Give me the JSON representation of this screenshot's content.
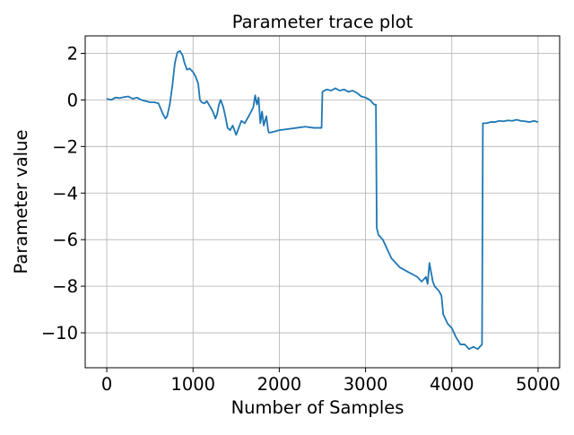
{
  "chart_data": {
    "type": "line",
    "title": "Parameter trace plot",
    "xlabel": "Number of Samples",
    "ylabel": "Parameter value",
    "xlim": [
      -250,
      5250
    ],
    "ylim": [
      -11.5,
      2.75
    ],
    "xticks": [
      0,
      1000,
      2000,
      3000,
      4000,
      5000
    ],
    "yticks": [
      2,
      0,
      -2,
      -4,
      -6,
      -8,
      -10
    ],
    "xtick_labels": [
      "0",
      "1000",
      "2000",
      "3000",
      "4000",
      "5000"
    ],
    "ytick_labels": [
      "2",
      "0",
      "−2",
      "−4",
      "−6",
      "−8",
      "−10"
    ],
    "grid": true,
    "legend": "none",
    "series": [
      {
        "color": "#1f77b4",
        "x": [
          0,
          50,
          100,
          150,
          200,
          250,
          300,
          350,
          400,
          450,
          500,
          550,
          600,
          650,
          680,
          700,
          730,
          760,
          790,
          820,
          850,
          880,
          900,
          930,
          960,
          1000,
          1030,
          1060,
          1080,
          1100,
          1130,
          1160,
          1200,
          1230,
          1260,
          1280,
          1300,
          1320,
          1350,
          1380,
          1400,
          1430,
          1460,
          1500,
          1530,
          1560,
          1600,
          1630,
          1660,
          1700,
          1720,
          1740,
          1760,
          1780,
          1800,
          1820,
          1850,
          1870,
          1880,
          1900,
          1950,
          2000,
          2100,
          2200,
          2300,
          2400,
          2490,
          2500,
          2550,
          2600,
          2650,
          2700,
          2750,
          2800,
          2850,
          2900,
          2950,
          3000,
          3050,
          3100,
          3120,
          3130,
          3150,
          3200,
          3250,
          3300,
          3350,
          3400,
          3450,
          3500,
          3550,
          3600,
          3650,
          3700,
          3720,
          3740,
          3760,
          3780,
          3800,
          3850,
          3880,
          3900,
          3950,
          4000,
          4050,
          4100,
          4150,
          4200,
          4250,
          4300,
          4350,
          4360,
          4400,
          4450,
          4500,
          4550,
          4600,
          4650,
          4700,
          4750,
          4800,
          4850,
          4900,
          4950,
          5000
        ],
        "y": [
          0.05,
          0.0,
          0.1,
          0.08,
          0.12,
          0.15,
          0.05,
          0.1,
          0.0,
          -0.05,
          -0.1,
          -0.1,
          -0.15,
          -0.6,
          -0.8,
          -0.7,
          -0.2,
          0.6,
          1.6,
          2.05,
          2.1,
          1.9,
          1.6,
          1.3,
          1.35,
          1.2,
          1.0,
          0.7,
          0.0,
          -0.1,
          -0.15,
          -0.05,
          -0.3,
          -0.5,
          -0.8,
          -0.6,
          -0.2,
          0.0,
          -0.3,
          -0.8,
          -1.2,
          -1.3,
          -1.1,
          -1.5,
          -1.2,
          -0.9,
          -1.0,
          -0.8,
          -0.6,
          -0.3,
          0.2,
          -0.2,
          0.1,
          -1.0,
          -0.5,
          -1.1,
          -0.7,
          -1.3,
          -1.4,
          -1.4,
          -1.35,
          -1.3,
          -1.25,
          -1.2,
          -1.15,
          -1.2,
          -1.2,
          0.35,
          0.45,
          0.4,
          0.5,
          0.4,
          0.45,
          0.35,
          0.4,
          0.3,
          0.15,
          0.1,
          0.0,
          -0.2,
          -0.2,
          -5.5,
          -5.8,
          -6.0,
          -6.4,
          -6.8,
          -7.0,
          -7.2,
          -7.3,
          -7.4,
          -7.5,
          -7.6,
          -7.8,
          -7.6,
          -7.9,
          -7.0,
          -7.4,
          -7.8,
          -8.0,
          -8.2,
          -8.4,
          -9.2,
          -9.6,
          -9.8,
          -10.2,
          -10.5,
          -10.5,
          -10.7,
          -10.6,
          -10.7,
          -10.5,
          -1.0,
          -1.0,
          -0.95,
          -0.95,
          -0.9,
          -0.92,
          -0.88,
          -0.9,
          -0.85,
          -0.9,
          -0.92,
          -0.95,
          -0.9,
          -0.95
        ]
      }
    ]
  }
}
